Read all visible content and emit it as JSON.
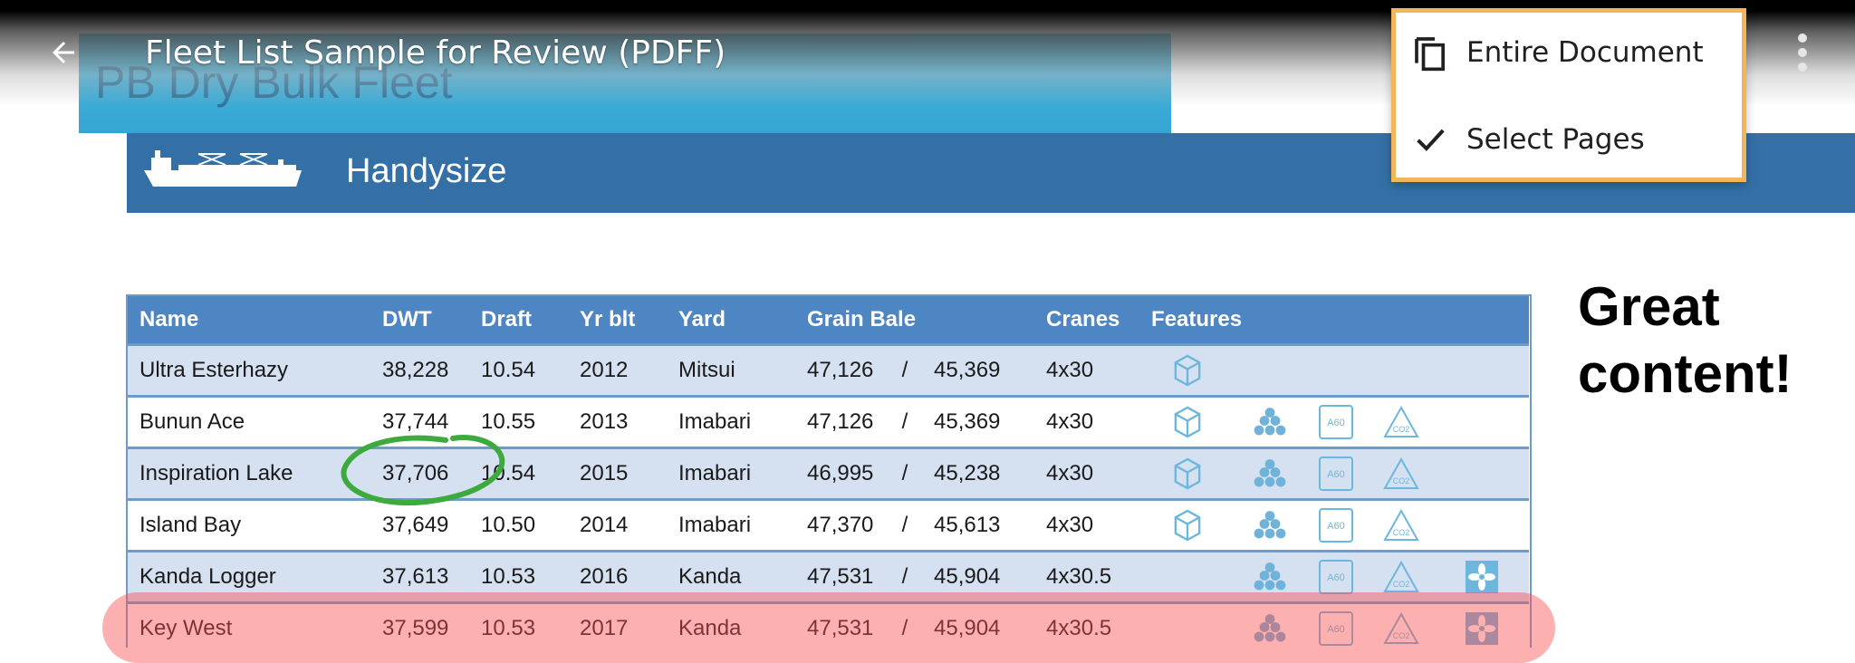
{
  "toolbar": {
    "title": "Fleet List Sample for Review (PDFF)",
    "back_icon": "arrow-left-icon",
    "more_icon": "more-vertical-icon"
  },
  "menu": {
    "items": [
      {
        "label": "Entire Document",
        "icon": "copy-icon"
      },
      {
        "label": "Select Pages",
        "icon": "check-icon"
      }
    ]
  },
  "document": {
    "fleet_title": "PB Dry Bulk Fleet",
    "class_name": "Handysize",
    "annotation": "Great content!",
    "annotation_lines": [
      "Great",
      "content!"
    ],
    "colors": {
      "banner": "#3aaad6",
      "class_bar": "#3470a6",
      "table_header": "#4e85c3",
      "alt_row": "#d5e0f0",
      "highlight": "#f85050",
      "circle": "#3daa3d",
      "menu_border": "#f2b55a"
    }
  },
  "table": {
    "headers": [
      "Name",
      "DWT",
      "Draft",
      "Yr blt",
      "Yard",
      "Grain Bale",
      "",
      "",
      "Cranes",
      "Features",
      "",
      "",
      "",
      ""
    ],
    "rows": [
      {
        "name": "Ultra Esterhazy",
        "dwt": "38,228",
        "draft": "10.54",
        "yr": "2012",
        "yard": "Mitsui",
        "grain": "47,126",
        "sep": "/",
        "bale": "45,369",
        "cranes": "4x30",
        "features": [
          "cube-icon"
        ]
      },
      {
        "name": "Bunun Ace",
        "dwt": "37,744",
        "draft": "10.55",
        "yr": "2013",
        "yard": "Imabari",
        "grain": "47,126",
        "sep": "/",
        "bale": "45,369",
        "cranes": "4x30",
        "features": [
          "cube-icon",
          "stack-icon",
          "a60-icon",
          "co2-icon"
        ]
      },
      {
        "name": "Inspiration Lake",
        "dwt": "37,706",
        "draft": "10.54",
        "yr": "2015",
        "yard": "Imabari",
        "grain": "46,995",
        "sep": "/",
        "bale": "45,238",
        "cranes": "4x30",
        "features": [
          "cube-icon",
          "stack-icon",
          "a60-icon",
          "co2-icon"
        ]
      },
      {
        "name": "Island Bay",
        "dwt": "37,649",
        "draft": "10.50",
        "yr": "2014",
        "yard": "Imabari",
        "grain": "47,370",
        "sep": "/",
        "bale": "45,613",
        "cranes": "4x30",
        "features": [
          "cube-icon",
          "stack-icon",
          "a60-icon",
          "co2-icon"
        ]
      },
      {
        "name": "Kanda Logger",
        "dwt": "37,613",
        "draft": "10.53",
        "yr": "2016",
        "yard": "Kanda",
        "grain": "47,531",
        "sep": "/",
        "bale": "45,904",
        "cranes": "4x30.5",
        "features": [
          "stack-icon",
          "a60-icon",
          "co2-icon",
          "fan-icon"
        ]
      },
      {
        "name": "Key West",
        "dwt": "37,599",
        "draft": "10.53",
        "yr": "2017",
        "yard": "Kanda",
        "grain": "47,531",
        "sep": "/",
        "bale": "45,904",
        "cranes": "4x30.5",
        "features": [
          "stack-icon",
          "a60-icon",
          "co2-icon",
          "fan-icon"
        ]
      }
    ],
    "a60_label": "A60",
    "co2_label": "CO2"
  }
}
